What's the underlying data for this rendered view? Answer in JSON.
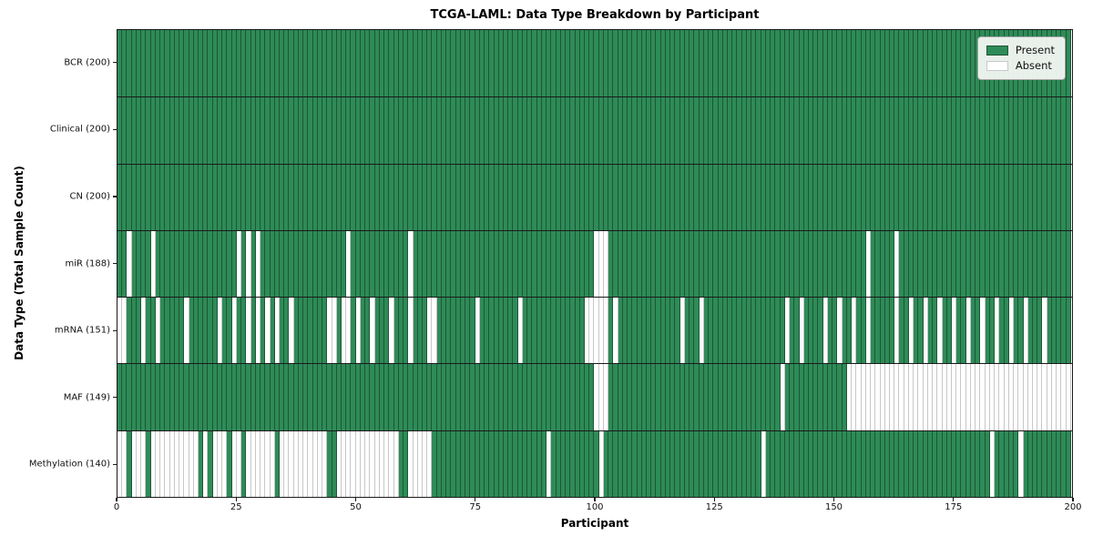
{
  "title": "TCGA-LAML: Data Type Breakdown by Participant",
  "xlabel": "Participant",
  "ylabel": "Data Type (Total Sample Count)",
  "legend": {
    "position": "upper right",
    "present_label": "Present",
    "absent_label": "Absent"
  },
  "colors": {
    "present": "#2e8b57",
    "absent": "#ffffff",
    "frame": "#1a1a1a"
  },
  "x_ticks": [
    0,
    25,
    50,
    75,
    100,
    125,
    150,
    175,
    200
  ],
  "chart_data": {
    "type": "heatmap",
    "title": "TCGA-LAML: Data Type Breakdown by Participant",
    "xlabel": "Participant",
    "ylabel": "Data Type (Total Sample Count)",
    "x_range": [
      0,
      200
    ],
    "n_participants": 200,
    "cell_values": "present=1 (green), absent=0 (white)",
    "rows": [
      {
        "label": "BCR (200)",
        "data_type": "BCR",
        "present_count": 200,
        "absent_count": 0,
        "absent_participants": []
      },
      {
        "label": "Clinical (200)",
        "data_type": "Clinical",
        "present_count": 200,
        "absent_count": 0,
        "absent_participants": []
      },
      {
        "label": "CN (200)",
        "data_type": "CN",
        "present_count": 200,
        "absent_count": 0,
        "absent_participants": []
      },
      {
        "label": "miR (188)",
        "data_type": "miR",
        "present_count": 188,
        "absent_count": 12,
        "absent_participants": [
          2,
          7,
          25,
          27,
          29,
          48,
          61,
          100,
          101,
          102,
          157,
          163
        ]
      },
      {
        "label": "mRNA (151)",
        "data_type": "mRNA",
        "present_count": 151,
        "absent_count": 49,
        "absent_participants": [
          0,
          1,
          5,
          8,
          14,
          21,
          24,
          27,
          29,
          31,
          33,
          36,
          44,
          45,
          47,
          48,
          50,
          53,
          57,
          61,
          65,
          66,
          75,
          84,
          98,
          99,
          100,
          101,
          102,
          104,
          118,
          122,
          140,
          143,
          148,
          151,
          154,
          157,
          163,
          166,
          169,
          172,
          175,
          178,
          181,
          184,
          187,
          190,
          194
        ]
      },
      {
        "label": "MAF (149)",
        "data_type": "MAF",
        "present_count": 149,
        "absent_count": 51,
        "absent_participants": [
          100,
          101,
          102,
          139,
          153,
          154,
          155,
          156,
          157,
          158,
          159,
          160,
          161,
          162,
          163,
          164,
          165,
          166,
          167,
          168,
          169,
          170,
          171,
          172,
          173,
          174,
          175,
          176,
          177,
          178,
          179,
          180,
          181,
          182,
          183,
          184,
          185,
          186,
          187,
          188,
          189,
          190,
          191,
          192,
          193,
          194,
          195,
          196,
          197,
          198,
          199
        ]
      },
      {
        "label": "Methylation (140)",
        "data_type": "Methylation",
        "present_count": 140,
        "absent_count": 60,
        "absent_participants": [
          0,
          1,
          3,
          4,
          5,
          7,
          8,
          9,
          10,
          11,
          12,
          13,
          14,
          15,
          16,
          18,
          20,
          21,
          22,
          24,
          25,
          27,
          28,
          29,
          30,
          31,
          32,
          34,
          35,
          36,
          37,
          38,
          39,
          40,
          41,
          42,
          43,
          46,
          47,
          48,
          49,
          50,
          51,
          52,
          53,
          54,
          55,
          56,
          57,
          58,
          61,
          62,
          63,
          64,
          65,
          90,
          101,
          135,
          183,
          189
        ]
      }
    ],
    "legend_entries": [
      "Present",
      "Absent"
    ],
    "grid": false
  }
}
